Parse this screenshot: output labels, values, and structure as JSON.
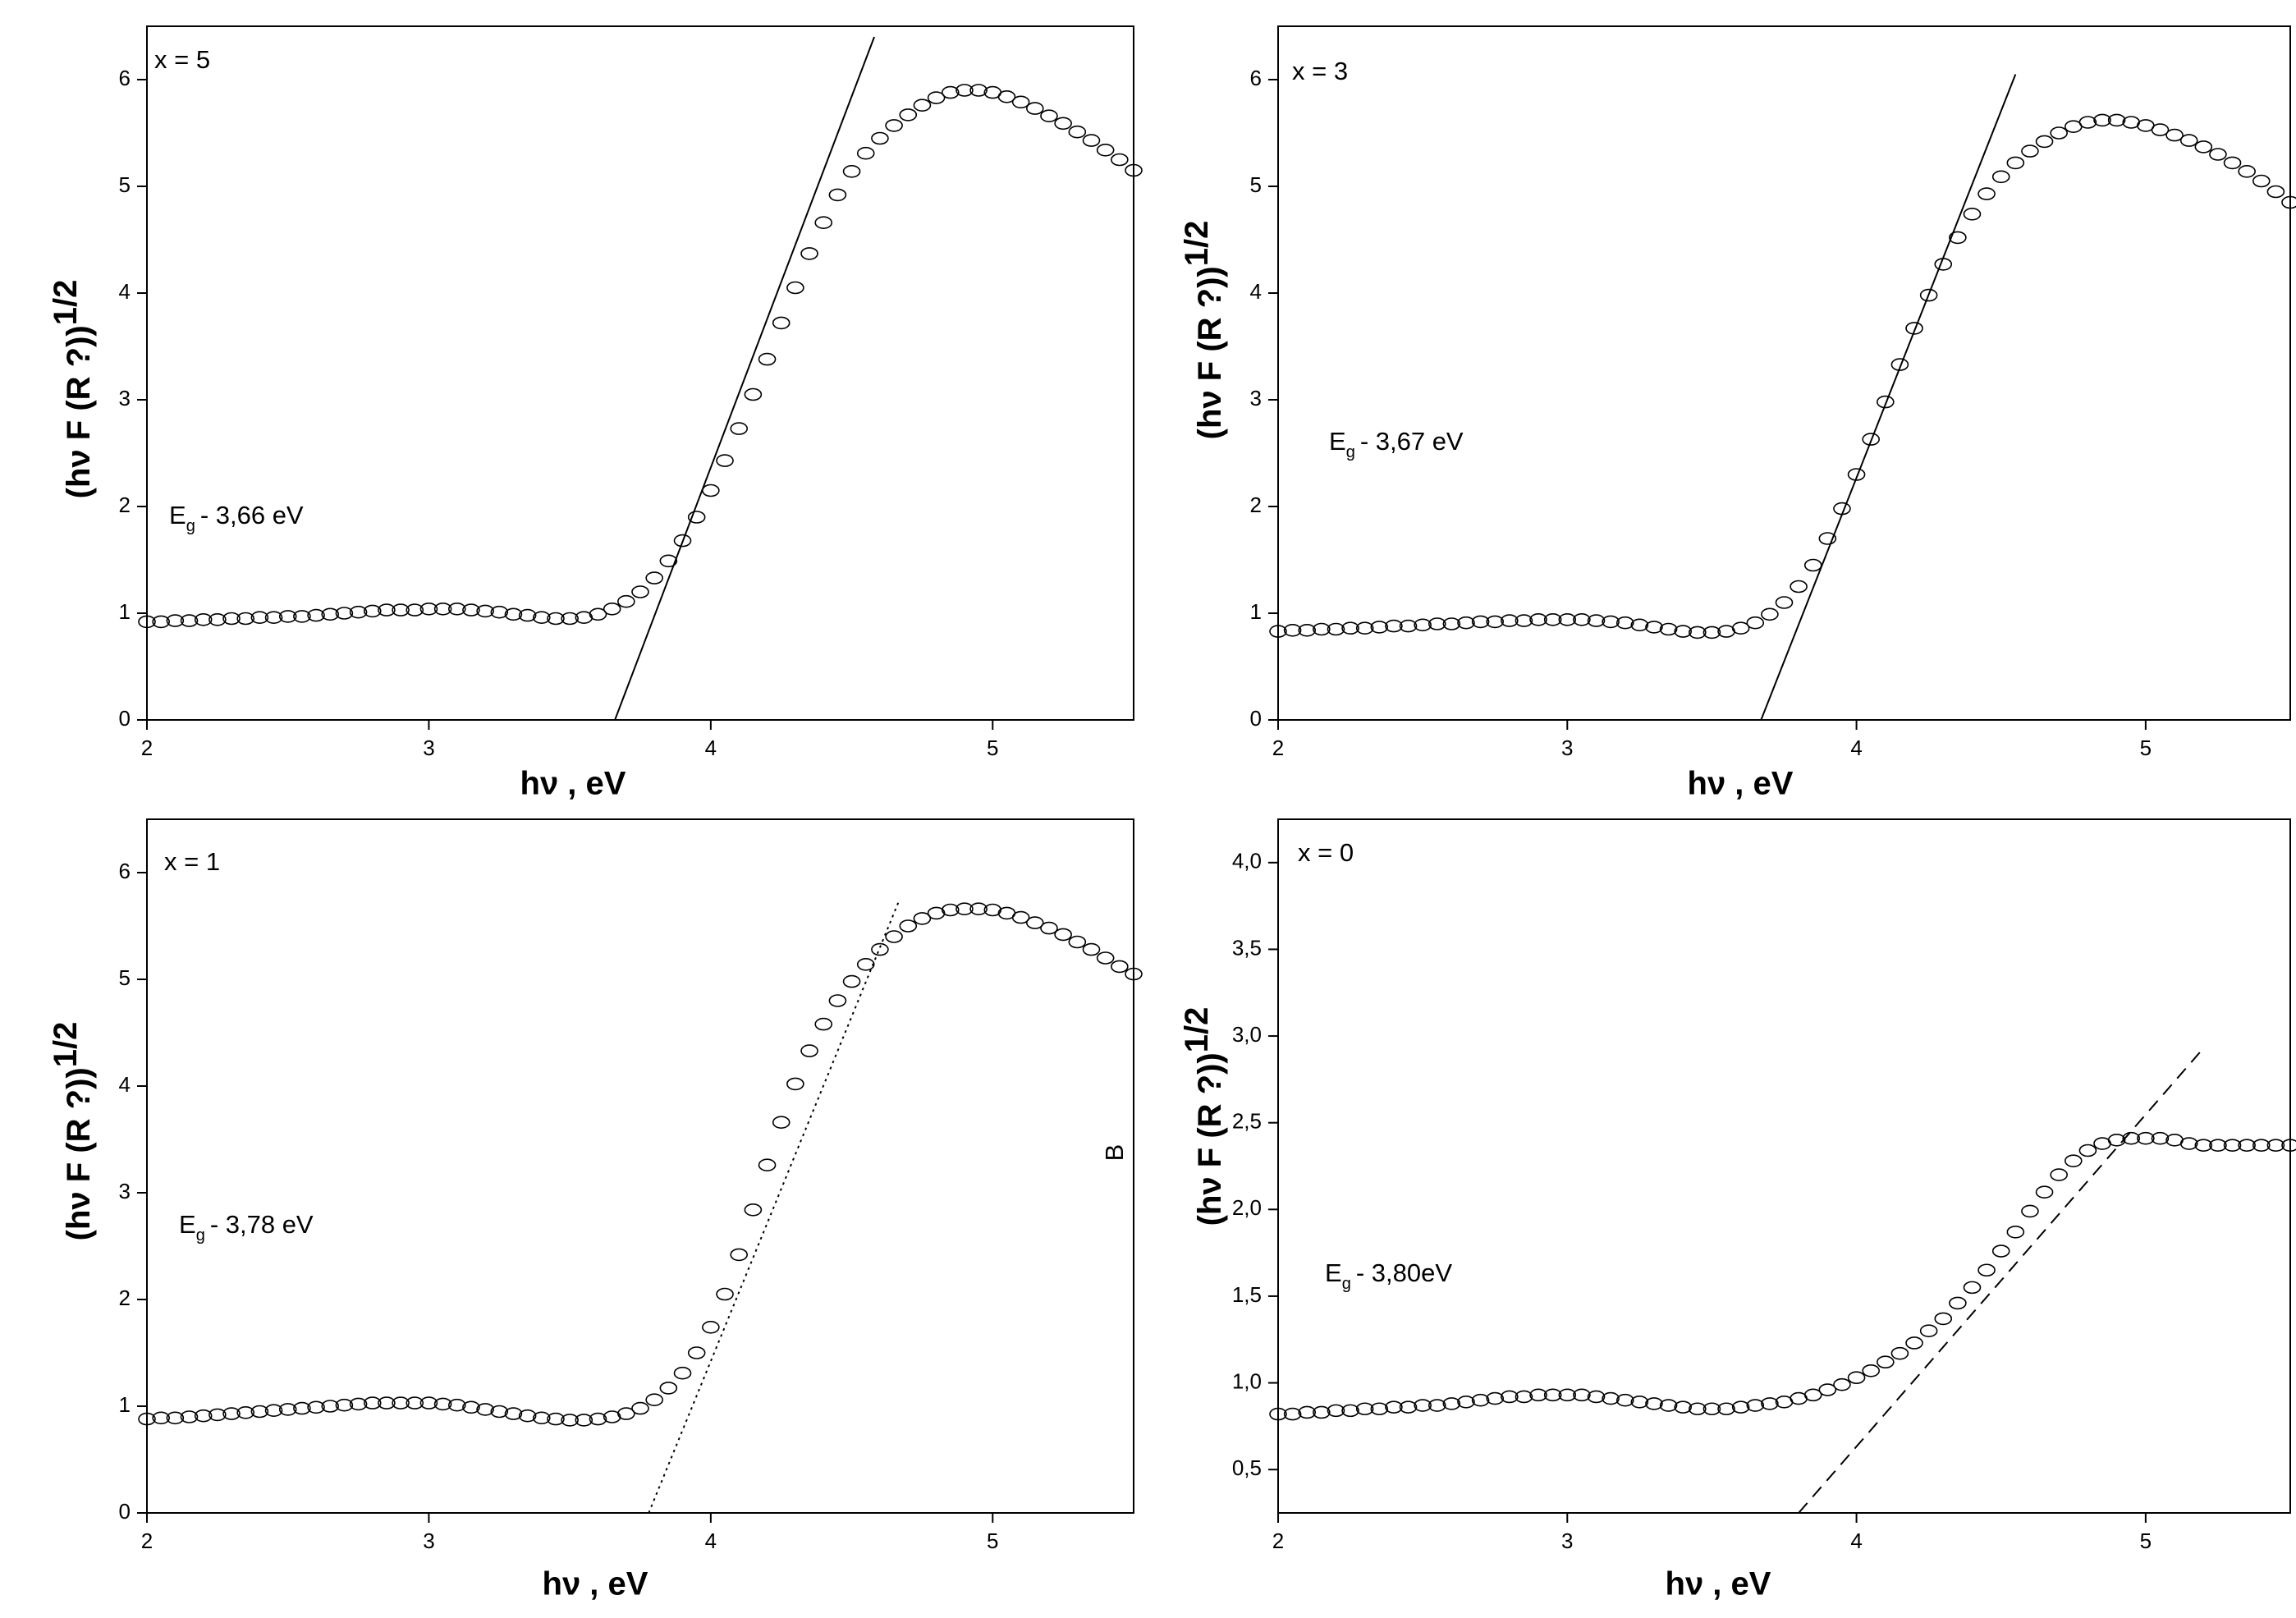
{
  "chart_data": [
    {
      "type": "scatter",
      "annotation": "x = 5",
      "gap_label": {
        "symbol": "E",
        "subscript": "g",
        "text": "- 3,66 eV"
      },
      "x_label": "hν , eV",
      "y_label": "(hν F (R ?))",
      "y_label_superscript": "1/2",
      "xlim": [
        2,
        5.5
      ],
      "xticks": [
        2,
        3,
        4,
        5
      ],
      "ylim": [
        0,
        6.5
      ],
      "yticks": [
        0,
        1,
        2,
        3,
        4,
        5,
        6
      ],
      "color": "#000000",
      "x": [
        2.0,
        2.05,
        2.1,
        2.15,
        2.2,
        2.25,
        2.3,
        2.35,
        2.4,
        2.45,
        2.5,
        2.55,
        2.6,
        2.65,
        2.7,
        2.75,
        2.8,
        2.85,
        2.9,
        2.95,
        3.0,
        3.05,
        3.1,
        3.15,
        3.2,
        3.25,
        3.3,
        3.35,
        3.4,
        3.45,
        3.5,
        3.55,
        3.6,
        3.65,
        3.7,
        3.75,
        3.8,
        3.85,
        3.9,
        3.95,
        4.0,
        4.05,
        4.1,
        4.15,
        4.2,
        4.25,
        4.3,
        4.35,
        4.4,
        4.45,
        4.5,
        4.55,
        4.6,
        4.65,
        4.7,
        4.75,
        4.8,
        4.85,
        4.9,
        4.95,
        5.0,
        5.05,
        5.1,
        5.15,
        5.2,
        5.25,
        5.3,
        5.35,
        5.4,
        5.45,
        5.5
      ],
      "values": [
        0.92,
        0.92,
        0.93,
        0.93,
        0.94,
        0.94,
        0.95,
        0.95,
        0.96,
        0.96,
        0.97,
        0.97,
        0.98,
        0.99,
        1.0,
        1.01,
        1.02,
        1.03,
        1.03,
        1.03,
        1.04,
        1.04,
        1.04,
        1.03,
        1.02,
        1.01,
        0.99,
        0.98,
        0.96,
        0.95,
        0.95,
        0.96,
        0.99,
        1.04,
        1.11,
        1.2,
        1.33,
        1.49,
        1.68,
        1.9,
        2.15,
        2.43,
        2.73,
        3.05,
        3.38,
        3.72,
        4.05,
        4.37,
        4.66,
        4.92,
        5.14,
        5.31,
        5.45,
        5.57,
        5.67,
        5.76,
        5.83,
        5.88,
        5.9,
        5.9,
        5.88,
        5.84,
        5.79,
        5.73,
        5.66,
        5.59,
        5.51,
        5.43,
        5.34,
        5.25,
        5.15
      ],
      "fit_line": {
        "x": [
          3.66,
          4.58
        ],
        "y": [
          0,
          6.4
        ],
        "dash": "solid"
      }
    },
    {
      "type": "scatter",
      "annotation": "x = 3",
      "gap_label": {
        "symbol": "E",
        "subscript": "g",
        "text": "- 3,67 eV"
      },
      "x_label": "hν , eV",
      "y_label": "(hν F (R ?))",
      "y_label_superscript": "1/2",
      "xlim": [
        2,
        5.5
      ],
      "xticks": [
        2,
        3,
        4,
        5
      ],
      "ylim": [
        0,
        6.5
      ],
      "yticks": [
        0,
        1,
        2,
        3,
        4,
        5,
        6
      ],
      "color": "#000000",
      "x": [
        2.0,
        2.05,
        2.1,
        2.15,
        2.2,
        2.25,
        2.3,
        2.35,
        2.4,
        2.45,
        2.5,
        2.55,
        2.6,
        2.65,
        2.7,
        2.75,
        2.8,
        2.85,
        2.9,
        2.95,
        3.0,
        3.05,
        3.1,
        3.15,
        3.2,
        3.25,
        3.3,
        3.35,
        3.4,
        3.45,
        3.5,
        3.55,
        3.6,
        3.65,
        3.7,
        3.75,
        3.8,
        3.85,
        3.9,
        3.95,
        4.0,
        4.05,
        4.1,
        4.15,
        4.2,
        4.25,
        4.3,
        4.35,
        4.4,
        4.45,
        4.5,
        4.55,
        4.6,
        4.65,
        4.7,
        4.75,
        4.8,
        4.85,
        4.9,
        4.95,
        5.0,
        5.05,
        5.1,
        5.15,
        5.2,
        5.25,
        5.3,
        5.35,
        5.4,
        5.45,
        5.5
      ],
      "values": [
        0.83,
        0.84,
        0.84,
        0.85,
        0.85,
        0.86,
        0.86,
        0.87,
        0.88,
        0.88,
        0.89,
        0.9,
        0.9,
        0.91,
        0.92,
        0.92,
        0.93,
        0.93,
        0.94,
        0.94,
        0.94,
        0.94,
        0.93,
        0.92,
        0.91,
        0.89,
        0.87,
        0.85,
        0.83,
        0.82,
        0.82,
        0.83,
        0.86,
        0.91,
        0.99,
        1.1,
        1.25,
        1.45,
        1.7,
        1.98,
        2.3,
        2.63,
        2.98,
        3.33,
        3.67,
        3.98,
        4.27,
        4.52,
        4.74,
        4.93,
        5.09,
        5.22,
        5.33,
        5.42,
        5.5,
        5.56,
        5.6,
        5.62,
        5.62,
        5.6,
        5.57,
        5.53,
        5.48,
        5.43,
        5.37,
        5.3,
        5.22,
        5.14,
        5.05,
        4.95,
        4.85
      ],
      "fit_line": {
        "x": [
          3.67,
          4.55
        ],
        "y": [
          0,
          6.05
        ],
        "dash": "solid"
      }
    },
    {
      "type": "scatter",
      "annotation": "x = 1",
      "gap_label": {
        "symbol": "E",
        "subscript": "g",
        "text": "- 3,78 eV"
      },
      "x_label": "hν , eV",
      "y_label": "(hν F (R ?))",
      "y_label_superscript": "1/2",
      "side_label": "B",
      "xlim": [
        2,
        5.5
      ],
      "xticks": [
        2,
        3,
        4,
        5
      ],
      "ylim": [
        0,
        6.5
      ],
      "yticks": [
        0,
        1,
        2,
        3,
        4,
        5,
        6
      ],
      "color": "#000000",
      "x": [
        2.0,
        2.05,
        2.1,
        2.15,
        2.2,
        2.25,
        2.3,
        2.35,
        2.4,
        2.45,
        2.5,
        2.55,
        2.6,
        2.65,
        2.7,
        2.75,
        2.8,
        2.85,
        2.9,
        2.95,
        3.0,
        3.05,
        3.1,
        3.15,
        3.2,
        3.25,
        3.3,
        3.35,
        3.4,
        3.45,
        3.5,
        3.55,
        3.6,
        3.65,
        3.7,
        3.75,
        3.8,
        3.85,
        3.9,
        3.95,
        4.0,
        4.05,
        4.1,
        4.15,
        4.2,
        4.25,
        4.3,
        4.35,
        4.4,
        4.45,
        4.5,
        4.55,
        4.6,
        4.65,
        4.7,
        4.75,
        4.8,
        4.85,
        4.9,
        4.95,
        5.0,
        5.05,
        5.1,
        5.15,
        5.2,
        5.25,
        5.3,
        5.35,
        5.4,
        5.45,
        5.5
      ],
      "values": [
        0.88,
        0.89,
        0.89,
        0.9,
        0.91,
        0.92,
        0.93,
        0.94,
        0.95,
        0.96,
        0.97,
        0.98,
        0.99,
        1.0,
        1.01,
        1.02,
        1.03,
        1.03,
        1.03,
        1.03,
        1.03,
        1.02,
        1.01,
        0.99,
        0.97,
        0.95,
        0.93,
        0.91,
        0.89,
        0.88,
        0.87,
        0.87,
        0.88,
        0.9,
        0.93,
        0.98,
        1.06,
        1.17,
        1.31,
        1.5,
        1.74,
        2.05,
        2.42,
        2.84,
        3.26,
        3.66,
        4.02,
        4.33,
        4.58,
        4.8,
        4.98,
        5.14,
        5.28,
        5.4,
        5.5,
        5.57,
        5.62,
        5.65,
        5.66,
        5.66,
        5.65,
        5.62,
        5.58,
        5.53,
        5.48,
        5.42,
        5.35,
        5.28,
        5.2,
        5.12,
        5.05
      ],
      "fit_line": {
        "x": [
          3.78,
          4.67
        ],
        "y": [
          0,
          5.75
        ],
        "dash": "dotted"
      }
    },
    {
      "type": "scatter",
      "annotation": "x = 0",
      "gap_label": {
        "symbol": "E",
        "subscript": "g",
        "text": "- 3,80eV"
      },
      "x_label": "hν , eV",
      "y_label": "(hν F (R ?))",
      "y_label_superscript": "1/2",
      "xlim": [
        2,
        5.5
      ],
      "xticks": [
        2,
        3,
        4,
        5
      ],
      "ylim": [
        0.25,
        4.25
      ],
      "yticks": [
        {
          "value": 0.5,
          "label": "0,5"
        },
        {
          "value": 1.0,
          "label": "1,0"
        },
        {
          "value": 1.5,
          "label": "1,5"
        },
        {
          "value": 2.0,
          "label": "2,0"
        },
        {
          "value": 2.5,
          "label": "2,5"
        },
        {
          "value": 3.0,
          "label": "3,0"
        },
        {
          "value": 3.5,
          "label": "3,5"
        },
        {
          "value": 4.0,
          "label": "4,0"
        }
      ],
      "color": "#000000",
      "x": [
        2.0,
        2.05,
        2.1,
        2.15,
        2.2,
        2.25,
        2.3,
        2.35,
        2.4,
        2.45,
        2.5,
        2.55,
        2.6,
        2.65,
        2.7,
        2.75,
        2.8,
        2.85,
        2.9,
        2.95,
        3.0,
        3.05,
        3.1,
        3.15,
        3.2,
        3.25,
        3.3,
        3.35,
        3.4,
        3.45,
        3.5,
        3.55,
        3.6,
        3.65,
        3.7,
        3.75,
        3.8,
        3.85,
        3.9,
        3.95,
        4.0,
        4.05,
        4.1,
        4.15,
        4.2,
        4.25,
        4.3,
        4.35,
        4.4,
        4.45,
        4.5,
        4.55,
        4.6,
        4.65,
        4.7,
        4.75,
        4.8,
        4.85,
        4.9,
        4.95,
        5.0,
        5.05,
        5.1,
        5.15,
        5.2,
        5.25,
        5.3,
        5.35,
        5.4,
        5.45,
        5.5
      ],
      "values": [
        0.82,
        0.82,
        0.83,
        0.83,
        0.84,
        0.84,
        0.85,
        0.85,
        0.86,
        0.86,
        0.87,
        0.87,
        0.88,
        0.89,
        0.9,
        0.91,
        0.92,
        0.92,
        0.93,
        0.93,
        0.93,
        0.93,
        0.92,
        0.91,
        0.9,
        0.89,
        0.88,
        0.87,
        0.86,
        0.85,
        0.85,
        0.85,
        0.86,
        0.87,
        0.88,
        0.89,
        0.91,
        0.93,
        0.96,
        0.99,
        1.03,
        1.07,
        1.12,
        1.17,
        1.23,
        1.3,
        1.37,
        1.46,
        1.55,
        1.65,
        1.76,
        1.87,
        1.99,
        2.1,
        2.2,
        2.28,
        2.34,
        2.38,
        2.4,
        2.41,
        2.41,
        2.41,
        2.4,
        2.38,
        2.37,
        2.37,
        2.37,
        2.37,
        2.37,
        2.37,
        2.37
      ],
      "fit_line": {
        "x": [
          3.8,
          5.2
        ],
        "y": [
          0.25,
          2.93
        ],
        "dash": "dashed"
      }
    }
  ]
}
